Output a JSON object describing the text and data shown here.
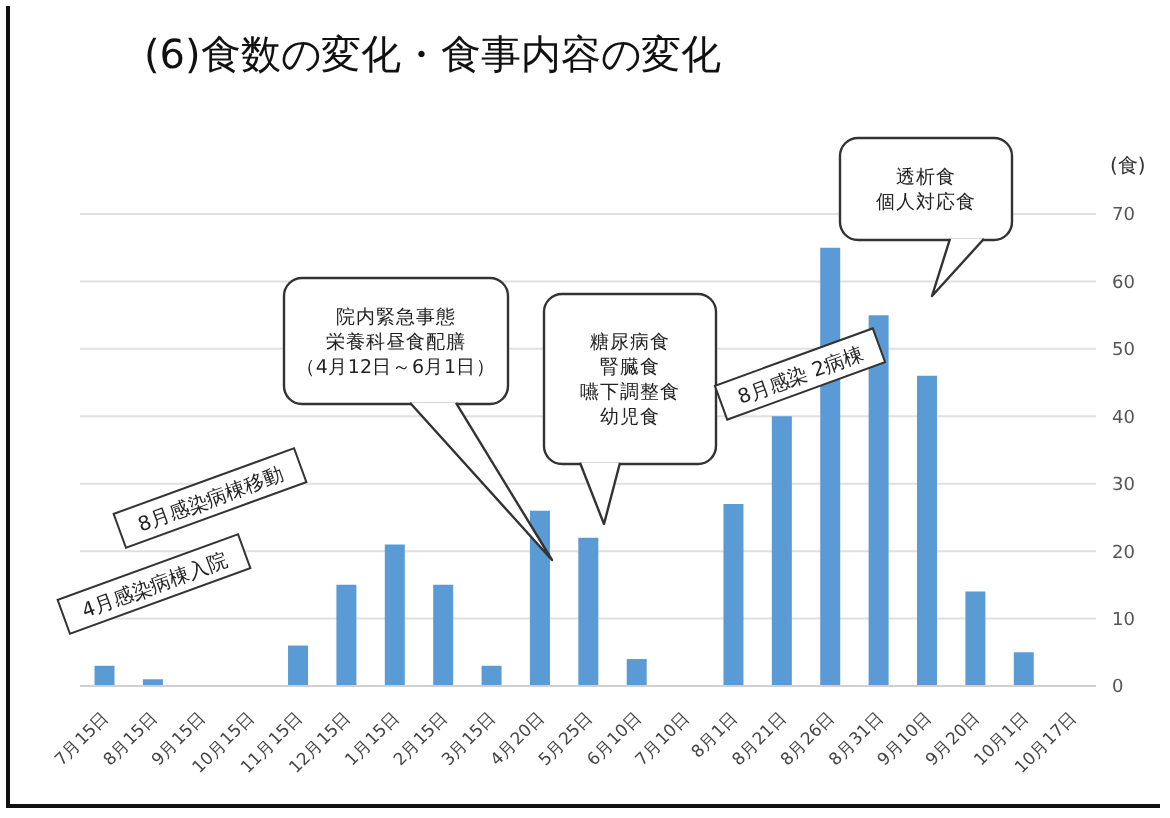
{
  "chart_data": {
    "type": "bar",
    "title": "(6)食数の変化・食事内容の変化",
    "ylabel": "(食)",
    "categories": [
      "7月15日",
      "8月15日",
      "9月15日",
      "10月15日",
      "11月15日",
      "12月15日",
      "1月15日",
      "2月15日",
      "3月15日",
      "4月20日",
      "5月25日",
      "6月10日",
      "7月10日",
      "8月1日",
      "8月21日",
      "8月26日",
      "8月31日",
      "9月10日",
      "9月20日",
      "10月1日",
      "10月17日"
    ],
    "values": [
      3,
      1,
      0,
      0,
      6,
      15,
      21,
      15,
      3,
      26,
      22,
      4,
      0,
      27,
      40,
      65,
      55,
      46,
      14,
      5,
      0
    ],
    "color": "#5b9bd5",
    "ylim": [
      0,
      70
    ],
    "yticks": [
      0,
      10,
      20,
      30,
      40,
      50,
      60,
      70
    ],
    "grid": "y",
    "annotations": [
      "院内緊急事態栄養科昼食配膳（4月12日～6月1日）",
      "糖尿病食腎臓食嚥下調整食幼児食",
      "透析食個人対応食",
      "8月感染病棟移動",
      "4月感染病棟入院",
      "8月感染 2病棟"
    ]
  }
}
